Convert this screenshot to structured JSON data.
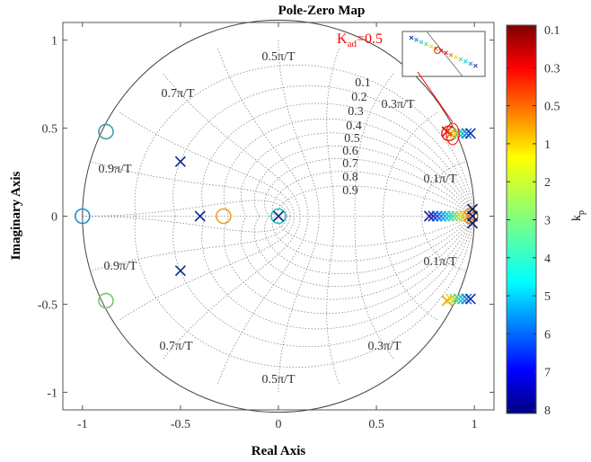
{
  "chart_data": {
    "type": "scatter",
    "title": "Pole-Zero Map",
    "xlabel": "Real Axis",
    "ylabel": "Imaginary Axis",
    "xlim": [
      -1.1,
      1.1
    ],
    "ylim": [
      -1.1,
      1.1
    ],
    "xticks": [
      "-1",
      "-0.5",
      "0",
      "0.5",
      "1"
    ],
    "yticks": [
      "1",
      "0.5",
      "0",
      "-0.5",
      "-1"
    ],
    "grid": true,
    "damping_labels": [
      "0.1",
      "0.2",
      "0.3",
      "0.4",
      "0.5",
      "0.6",
      "0.7",
      "0.8",
      "0.9"
    ],
    "frequency_labels_upper": [
      "0.5π/T",
      "0.7π/T",
      "0.3π/T",
      "0.9π/T",
      "0.1π/T"
    ],
    "frequency_labels_lower": [
      "0.9π/T",
      "0.1π/T",
      "0.7π/T",
      "0.3π/T",
      "0.5π/T"
    ],
    "annotation": {
      "text": "K",
      "subscript": "ad",
      "value": "=0.5",
      "color": "#ff0000"
    },
    "colorbar": {
      "label": "k",
      "label_subscript": "p",
      "ticks": [
        "0.1",
        "0.3",
        "0.5",
        "1",
        "2",
        "3",
        "4",
        "5",
        "6",
        "7",
        "8"
      ],
      "colormap": "jet"
    },
    "zeros": [
      {
        "x": -1.0,
        "y": 0.0,
        "color": "#1a8fd0"
      },
      {
        "x": -0.88,
        "y": 0.48,
        "color": "#3aa0a8"
      },
      {
        "x": -0.88,
        "y": -0.48,
        "color": "#7ac070"
      },
      {
        "x": -0.28,
        "y": 0.0,
        "color": "#f0a020"
      },
      {
        "x": 0.0,
        "y": 0.0,
        "color": "#20c0c0"
      },
      {
        "x": 0.87,
        "y": 0.47,
        "color": "#e03020"
      },
      {
        "x": 0.98,
        "y": 0.0,
        "color": "#d08020"
      }
    ],
    "poles": [
      {
        "x": -0.5,
        "y": 0.31,
        "color": "#0a2a90"
      },
      {
        "x": -0.5,
        "y": -0.31,
        "color": "#0a2a90"
      },
      {
        "x": -0.4,
        "y": 0.0,
        "color": "#0a2a90"
      },
      {
        "x": 0.0,
        "y": 0.0,
        "color": "#0a2a90"
      },
      {
        "x": 0.86,
        "y": 0.48,
        "color": "#d01010"
      },
      {
        "x": 0.88,
        "y": 0.47,
        "color": "#f07010"
      },
      {
        "x": 0.9,
        "y": 0.47,
        "color": "#e0e020"
      },
      {
        "x": 0.92,
        "y": 0.47,
        "color": "#60d080"
      },
      {
        "x": 0.94,
        "y": 0.47,
        "color": "#20c0e0"
      },
      {
        "x": 0.96,
        "y": 0.47,
        "color": "#2080e0"
      },
      {
        "x": 0.98,
        "y": 0.47,
        "color": "#1030b0"
      },
      {
        "x": 0.86,
        "y": -0.48,
        "color": "#f0a010"
      },
      {
        "x": 0.88,
        "y": -0.47,
        "color": "#e0e020"
      },
      {
        "x": 0.9,
        "y": -0.47,
        "color": "#a0e040"
      },
      {
        "x": 0.92,
        "y": -0.47,
        "color": "#40d0a0"
      },
      {
        "x": 0.94,
        "y": -0.47,
        "color": "#20c0e0"
      },
      {
        "x": 0.96,
        "y": -0.47,
        "color": "#2080e0"
      },
      {
        "x": 0.98,
        "y": -0.47,
        "color": "#1030b0"
      },
      {
        "x": 0.77,
        "y": 0.0,
        "color": "#1a2080"
      },
      {
        "x": 0.79,
        "y": 0.0,
        "color": "#2030c0"
      },
      {
        "x": 0.81,
        "y": 0.0,
        "color": "#2050e0"
      },
      {
        "x": 0.83,
        "y": 0.0,
        "color": "#2080f0"
      },
      {
        "x": 0.85,
        "y": 0.0,
        "color": "#20b0f0"
      },
      {
        "x": 0.87,
        "y": 0.0,
        "color": "#20d0e0"
      },
      {
        "x": 0.89,
        "y": 0.0,
        "color": "#40e0b0"
      },
      {
        "x": 0.91,
        "y": 0.0,
        "color": "#80e080"
      },
      {
        "x": 0.93,
        "y": 0.0,
        "color": "#c0e040"
      },
      {
        "x": 0.95,
        "y": 0.0,
        "color": "#f0d020"
      },
      {
        "x": 0.97,
        "y": 0.0,
        "color": "#f08020"
      },
      {
        "x": 0.99,
        "y": 0.0,
        "color": "#0a1a60"
      },
      {
        "x": 0.99,
        "y": 0.04,
        "color": "#0a1a60"
      },
      {
        "x": 0.99,
        "y": -0.04,
        "color": "#0a1a60"
      }
    ]
  }
}
